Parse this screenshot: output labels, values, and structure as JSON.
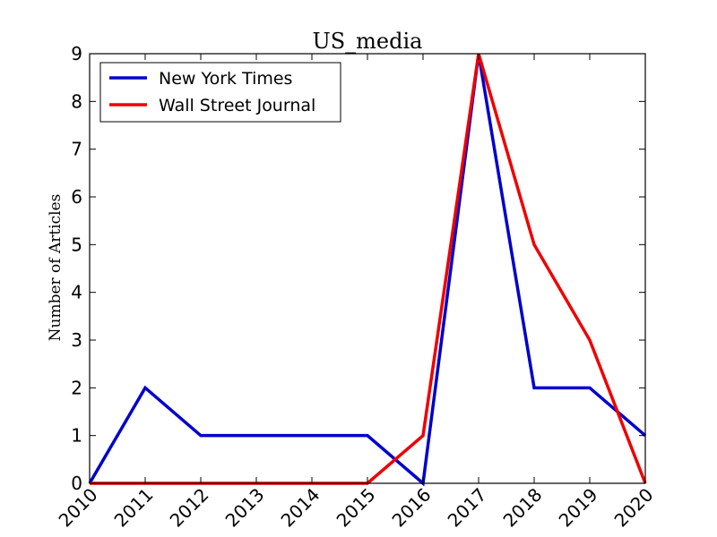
{
  "chart_data": {
    "type": "line",
    "title": "US_media",
    "xlabel": "",
    "ylabel": "Number of Articles",
    "x": [
      2010,
      2011,
      2012,
      2013,
      2014,
      2015,
      2016,
      2017,
      2018,
      2019,
      2020
    ],
    "x_tick_labels": [
      "2010",
      "2011",
      "2012",
      "2013",
      "2014",
      "2015",
      "2016",
      "2017",
      "2018",
      "2019",
      "2020"
    ],
    "y_tick_labels": [
      "0",
      "1",
      "2",
      "3",
      "4",
      "5",
      "6",
      "7",
      "8",
      "9"
    ],
    "xlim": [
      2010,
      2020
    ],
    "ylim": [
      0,
      9
    ],
    "grid": false,
    "legend_position": "top-left",
    "series": [
      {
        "name": "New York Times",
        "color": "#0000cc",
        "values": [
          0,
          2,
          1,
          1,
          1,
          1,
          0,
          9,
          2,
          2,
          1
        ]
      },
      {
        "name": "Wall Street Journal",
        "color": "#ee0000",
        "values": [
          0,
          0,
          0,
          0,
          0,
          0,
          1,
          9,
          5,
          3,
          0
        ]
      }
    ]
  }
}
